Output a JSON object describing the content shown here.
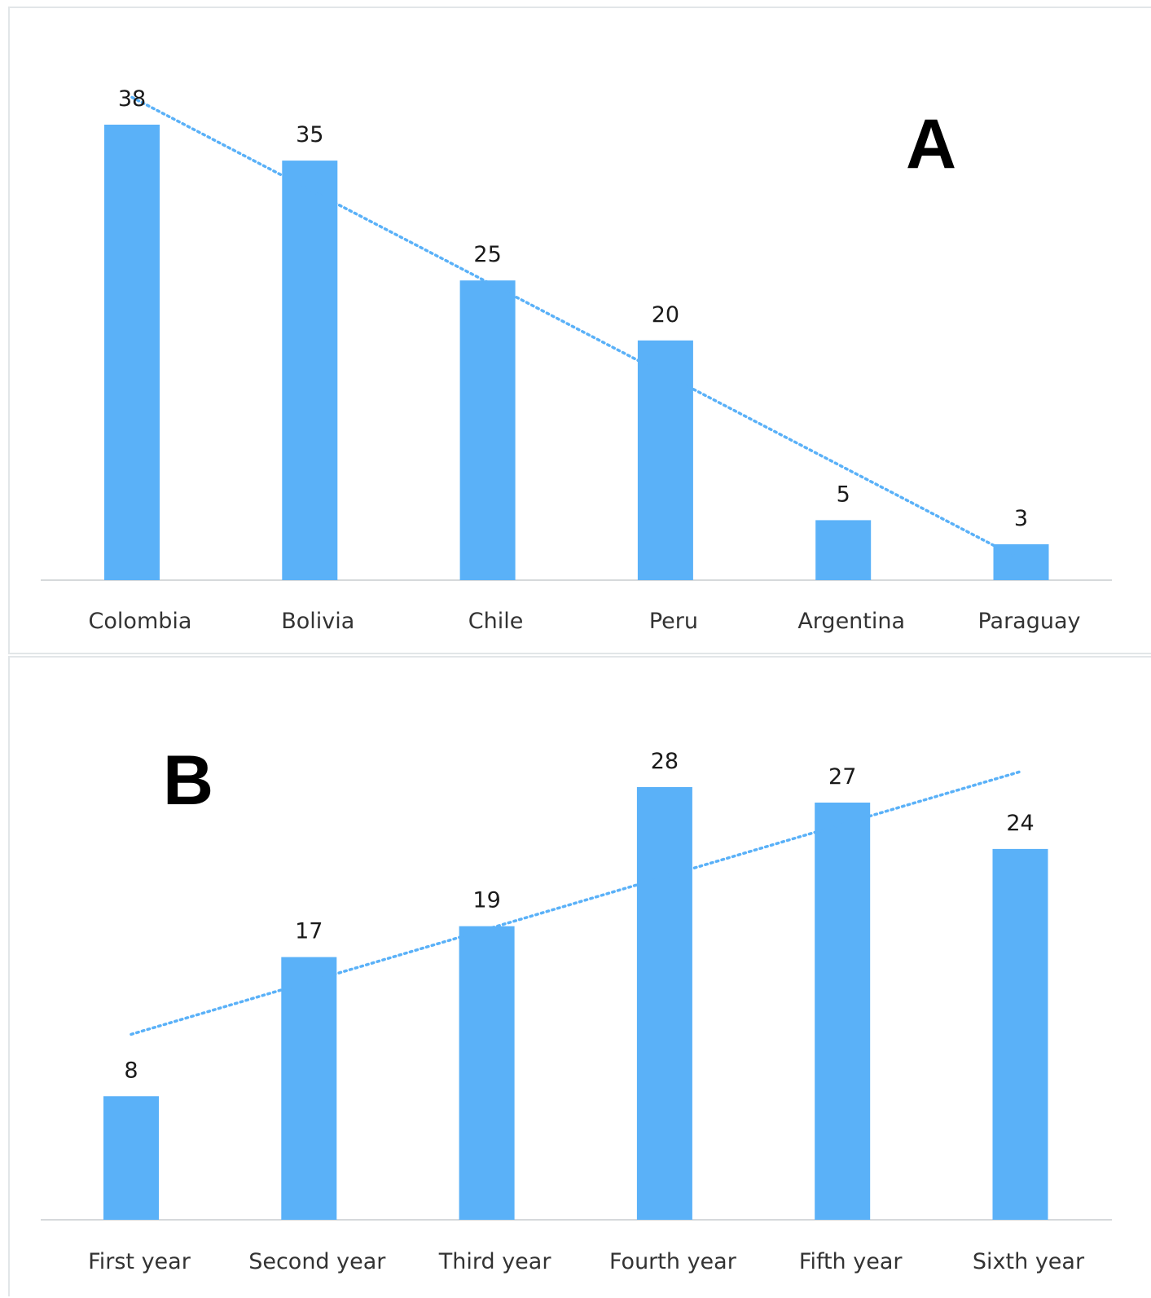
{
  "chart_data": [
    {
      "type": "bar",
      "panel_label": "A",
      "categories": [
        "Colombia",
        "Bolivia",
        "Chile",
        "Peru",
        "Argentina",
        "Paraguay"
      ],
      "values": [
        38,
        35,
        25,
        20,
        5,
        3
      ],
      "trendline": "linear",
      "ylim": [
        0,
        38
      ],
      "grid": false,
      "bar_color": "#5ab1f8",
      "trend_color": "#5ab1f8"
    },
    {
      "type": "bar",
      "panel_label": "B",
      "categories": [
        "First year",
        "Second year",
        "Third year",
        "Fourth year",
        "Fifth year",
        "Sixth year"
      ],
      "values": [
        8,
        17,
        19,
        28,
        27,
        24
      ],
      "trendline": "linear",
      "ylim": [
        0,
        28
      ],
      "grid": false,
      "bar_color": "#5ab1f8",
      "trend_color": "#5ab1f8"
    }
  ]
}
